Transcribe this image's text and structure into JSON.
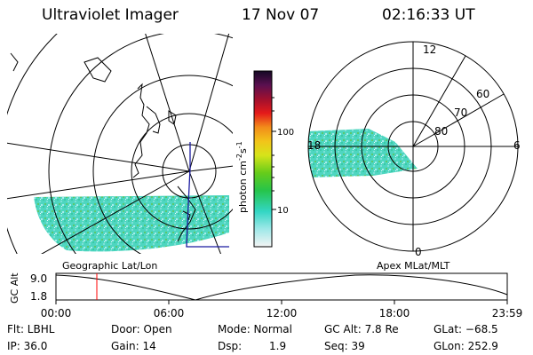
{
  "header": {
    "title": "Ultraviolet Imager",
    "date": "17 Nov 07",
    "time": "02:16:33 UT"
  },
  "colorbar": {
    "unit_label": "photon cm",
    "unit_sup1": "-2",
    "unit_mid": "s",
    "unit_sup2": "-1",
    "ticks": [
      "100",
      "10"
    ]
  },
  "polar_plot": {
    "mlt_labels": [
      "12",
      "18",
      "6",
      "0"
    ],
    "lat_labels": [
      "60",
      "70",
      "80"
    ]
  },
  "panel_labels": {
    "left": "Geographic Lat/Lon",
    "right": "Apex MLat/MLT"
  },
  "altitude_plot": {
    "ylabel": "GC Alt",
    "yticks": [
      "9.0",
      "1.8"
    ],
    "xticks": [
      "00:00",
      "06:00",
      "12:00",
      "18:00",
      "23:59"
    ],
    "current_time_marker": "02:16"
  },
  "info": {
    "filter": "Flt: LBHL",
    "door": "Door: Open",
    "mode": "Mode: Normal",
    "gc_alt": "GC Alt: 7.8 Re",
    "glat": "GLat: −68.5",
    "ip": "IP: 36.0",
    "gain": "Gain: 14",
    "dsp_label": "Dsp:",
    "dsp_value": "1.9",
    "seq": "Seq: 39",
    "glon": "GLon: 252.9"
  },
  "colors": {
    "marker": "#ff0000",
    "trajectory": "#1a1aa0"
  }
}
